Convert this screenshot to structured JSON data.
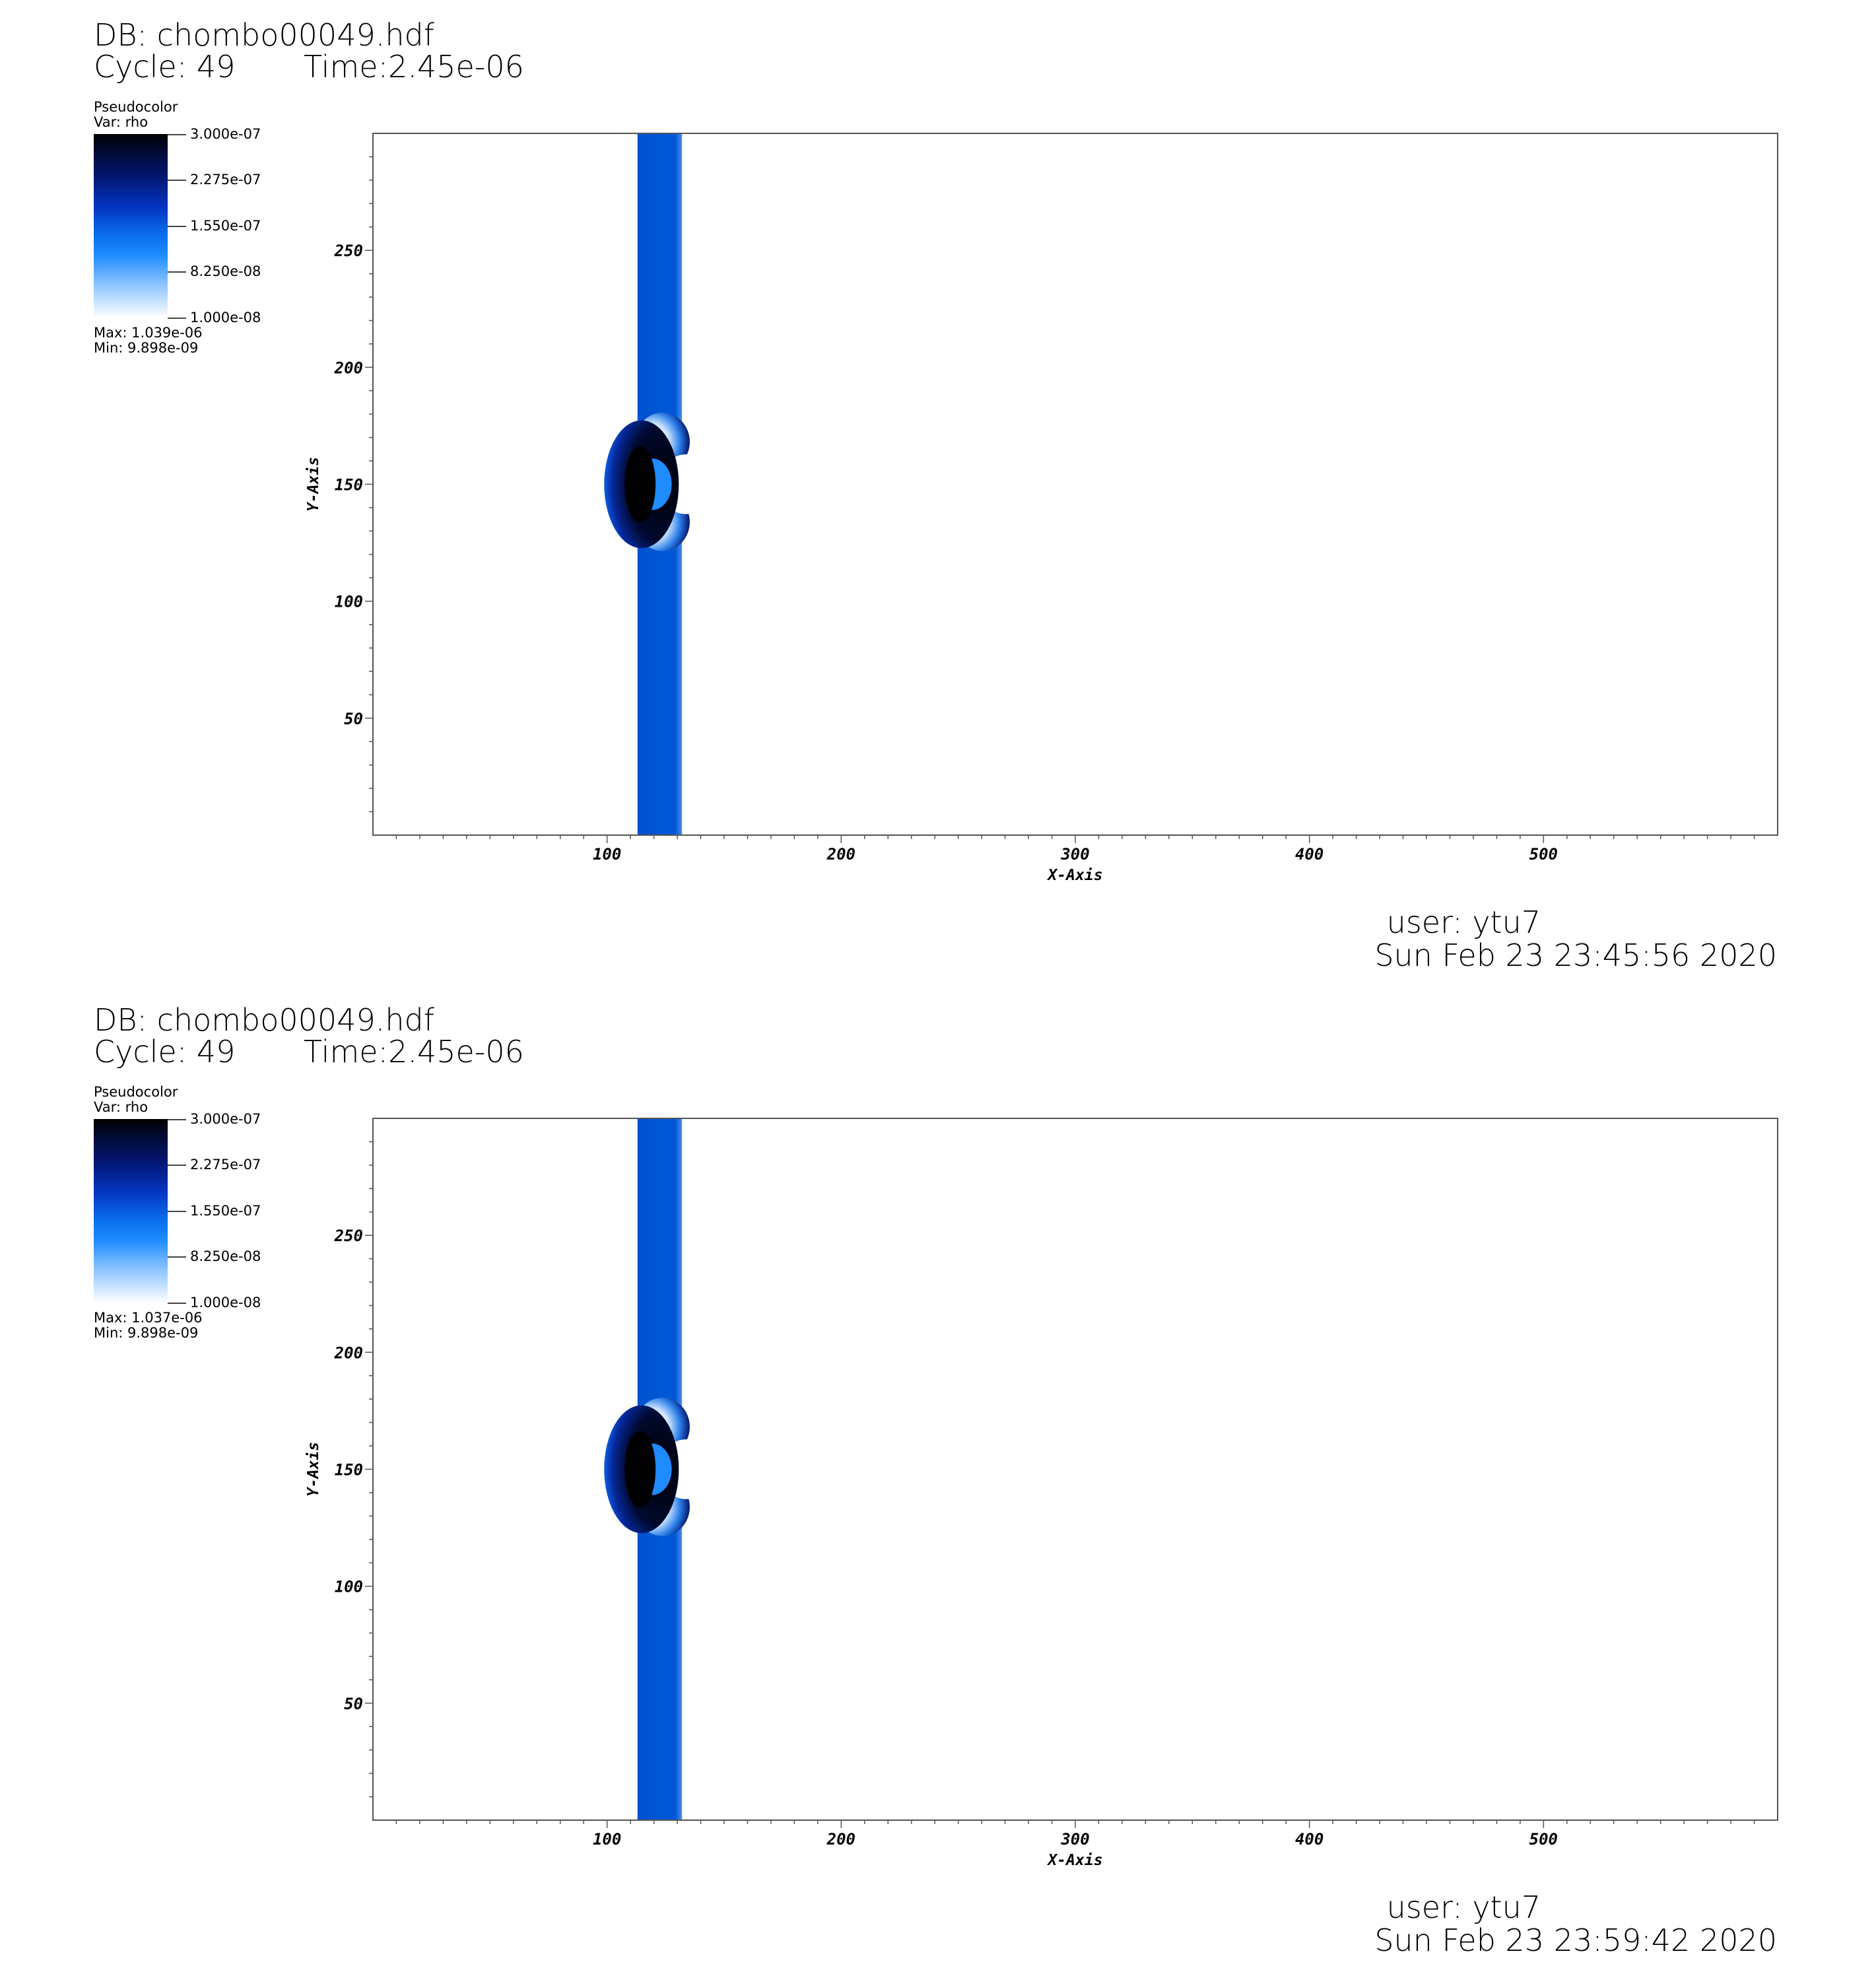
{
  "panels": [
    {
      "db": "DB: chombo00049.hdf",
      "cycle": "Cycle: 49",
      "time": "Time:2.45e-06",
      "legend": {
        "title": "Pseudocolor",
        "var": "Var: rho",
        "ticks": [
          "3.000e-07",
          "2.275e-07",
          "1.550e-07",
          "8.250e-08",
          "1.000e-08"
        ],
        "max": "Max:  1.039e-06",
        "min": "Min:  9.898e-09"
      },
      "user": "user: ytu7",
      "date": "Sun Feb 23 23:45:56 2020"
    },
    {
      "db": "DB: chombo00049.hdf",
      "cycle": "Cycle: 49",
      "time": "Time:2.45e-06",
      "legend": {
        "title": "Pseudocolor",
        "var": "Var: rho",
        "ticks": [
          "3.000e-07",
          "2.275e-07",
          "1.550e-07",
          "8.250e-08",
          "1.000e-08"
        ],
        "max": "Max:  1.037e-06",
        "min": "Min:  9.898e-09"
      },
      "user": "user: ytu7",
      "date": "Sun Feb 23 23:59:42 2020"
    }
  ],
  "chart_data": [
    {
      "type": "heatmap",
      "title": "",
      "xlabel": "X-Axis",
      "ylabel": "Y-Axis",
      "xlim": [
        0,
        600
      ],
      "ylim": [
        0,
        300
      ],
      "xticks": [
        100,
        200,
        300,
        400,
        500
      ],
      "yticks": [
        50,
        100,
        150,
        200,
        250
      ],
      "variable": "rho",
      "colorbar_range": [
        1e-08,
        3e-07
      ],
      "features": [
        {
          "name": "density slab",
          "x_range": [
            113,
            132
          ],
          "y_range": [
            0,
            300
          ],
          "color": "#0055d4"
        },
        {
          "name": "dense shocked cap",
          "center": [
            113,
            150
          ],
          "y_range": [
            122,
            180
          ],
          "color": "#000000"
        }
      ]
    },
    {
      "type": "heatmap",
      "title": "",
      "xlabel": "X-Axis",
      "ylabel": "Y-Axis",
      "xlim": [
        0,
        600
      ],
      "ylim": [
        0,
        300
      ],
      "xticks": [
        100,
        200,
        300,
        400,
        500
      ],
      "yticks": [
        50,
        100,
        150,
        200,
        250
      ],
      "variable": "rho",
      "colorbar_range": [
        1e-08,
        3e-07
      ],
      "features": [
        {
          "name": "density slab",
          "x_range": [
            113,
            132
          ],
          "y_range": [
            0,
            300
          ],
          "color": "#0055d4"
        },
        {
          "name": "dense shocked cap",
          "center": [
            113,
            150
          ],
          "y_range": [
            122,
            180
          ],
          "color": "#000000"
        }
      ]
    }
  ]
}
